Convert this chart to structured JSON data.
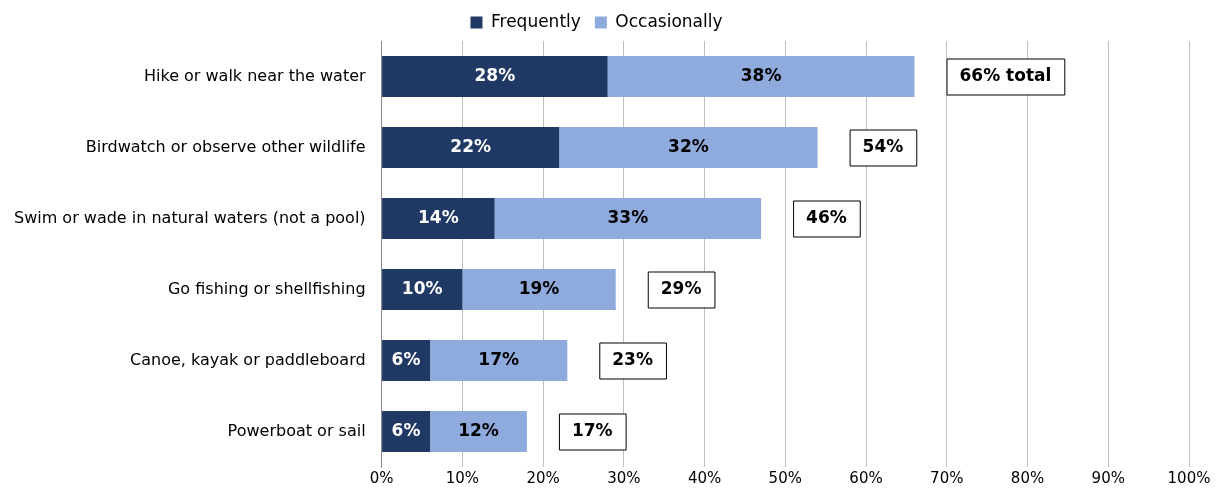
{
  "chart_data": {
    "type": "bar",
    "orientation": "horizontal",
    "stacked": true,
    "categories": [
      "Hike or walk near the water",
      "Birdwatch or observe other wildlife",
      "Swim or wade in natural waters (not a pool)",
      "Go fishing or shellfishing",
      "Canoe, kayak or paddleboard",
      "Powerboat or sail"
    ],
    "series": [
      {
        "name": "Frequently",
        "color": "#203864",
        "values": [
          28,
          22,
          14,
          10,
          6,
          6
        ],
        "value_labels": [
          "28%",
          "22%",
          "14%",
          "10%",
          "6%",
          "6%"
        ]
      },
      {
        "name": "Occasionally",
        "color": "#8faadc",
        "values": [
          38,
          32,
          33,
          19,
          17,
          12
        ],
        "value_labels": [
          "38%",
          "32%",
          "33%",
          "19%",
          "17%",
          "12%"
        ]
      }
    ],
    "totals": [
      "66% total",
      "54%",
      "46%",
      "29%",
      "23%",
      "17%"
    ],
    "xlim": [
      0,
      100
    ],
    "xticks": [
      {
        "value": 0,
        "label": "0%"
      },
      {
        "value": 10,
        "label": "10%"
      },
      {
        "value": 20,
        "label": "20%"
      },
      {
        "value": 30,
        "label": "30%"
      },
      {
        "value": 40,
        "label": "40%"
      },
      {
        "value": 50,
        "label": "50%"
      },
      {
        "value": 60,
        "label": "60%"
      },
      {
        "value": 70,
        "label": "70%"
      },
      {
        "value": 80,
        "label": "80%"
      },
      {
        "value": 90,
        "label": "90%"
      },
      {
        "value": 100,
        "label": "100%"
      }
    ],
    "grid": "x",
    "legend": "top"
  }
}
